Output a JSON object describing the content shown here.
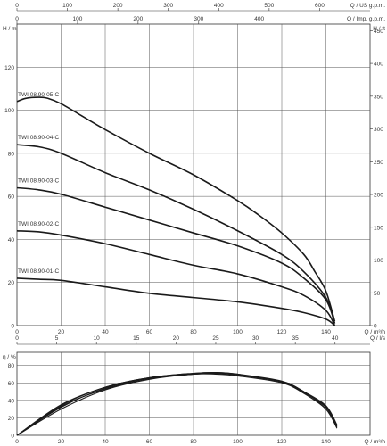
{
  "chart_data": [
    {
      "type": "line",
      "title": "",
      "axes": {
        "top_us": {
          "label": "Q / US g.p.m.",
          "ticks": [
            "0",
            "100",
            "200",
            "300",
            "400",
            "500",
            "600"
          ],
          "range": [
            0,
            700
          ]
        },
        "top_imp": {
          "label": "Q / Imp. g.p.m.",
          "ticks": [
            "0",
            "100",
            "200",
            "300",
            "400"
          ],
          "range": [
            0,
            583
          ]
        },
        "left": {
          "label": "H / m",
          "ticks": [
            "0",
            "20",
            "40",
            "60",
            "80",
            "100",
            "120"
          ],
          "range": [
            0,
            140
          ]
        },
        "right": {
          "label": "H / ft",
          "ticks": [
            "0",
            "50",
            "100",
            "150",
            "200",
            "250",
            "300",
            "350",
            "400",
            "450"
          ],
          "range": [
            0,
            460
          ]
        },
        "bottom_m3h": {
          "label": "Q / m³/h",
          "ticks": [
            "0",
            "20",
            "40",
            "60",
            "80",
            "100",
            "120",
            "140"
          ],
          "range": [
            0,
            160
          ]
        },
        "bottom_ls": {
          "label": "Q / l/s",
          "ticks": [
            "0",
            "5",
            "10",
            "15",
            "20",
            "25",
            "30",
            "35",
            "40"
          ],
          "range": [
            0,
            44.4
          ]
        }
      },
      "grid": true,
      "series": [
        {
          "name": "TWI 08.90-05-C",
          "x": [
            0,
            4,
            10,
            14,
            20,
            30,
            40,
            60,
            80,
            100,
            110,
            120,
            130,
            135,
            140,
            144
          ],
          "y": [
            104,
            105.5,
            106,
            105.5,
            103,
            97,
            91,
            80,
            70,
            58,
            51,
            43,
            33,
            25,
            16,
            2
          ]
        },
        {
          "name": "TWI 08.90-04-C",
          "x": [
            0,
            10,
            20,
            40,
            60,
            80,
            100,
            120,
            130,
            140,
            144
          ],
          "y": [
            84,
            83,
            80,
            71,
            63,
            54,
            44,
            33,
            25,
            13,
            1
          ]
        },
        {
          "name": "TWI 08.90-03-C",
          "x": [
            0,
            10,
            20,
            40,
            60,
            80,
            100,
            120,
            130,
            140,
            144
          ],
          "y": [
            64,
            63,
            61,
            55,
            49,
            43,
            37,
            29,
            22,
            12,
            1
          ]
        },
        {
          "name": "TWI 08.90-02-C",
          "x": [
            0,
            10,
            20,
            40,
            60,
            80,
            100,
            120,
            130,
            140,
            144
          ],
          "y": [
            44,
            43.5,
            42,
            38,
            33,
            28,
            24,
            18,
            14,
            7,
            0
          ]
        },
        {
          "name": "TWI 08.90-01-C",
          "x": [
            0,
            10,
            20,
            40,
            60,
            80,
            100,
            120,
            130,
            140,
            144
          ],
          "y": [
            22,
            21.5,
            21,
            18,
            15,
            13,
            11,
            8,
            6,
            3,
            0
          ]
        }
      ]
    },
    {
      "type": "line",
      "title": "",
      "axes": {
        "left": {
          "label": "η / %",
          "ticks": [
            "0",
            "20",
            "40",
            "60",
            "80"
          ],
          "range": [
            0,
            95
          ]
        },
        "bottom": {
          "label": "Q / m³/h",
          "ticks": [
            "0",
            "20",
            "40",
            "60",
            "80",
            "100",
            "120",
            "140"
          ],
          "range": [
            0,
            160
          ]
        }
      },
      "grid": true,
      "series": [
        {
          "x": [
            0,
            20,
            40,
            60,
            80,
            90,
            100,
            120,
            130,
            140,
            145
          ],
          "y": [
            0,
            35,
            55,
            66,
            71,
            72,
            70,
            62,
            50,
            34,
            12
          ]
        },
        {
          "x": [
            0,
            20,
            40,
            60,
            80,
            90,
            100,
            120,
            130,
            140,
            145
          ],
          "y": [
            0,
            33,
            53,
            65,
            70,
            71,
            69,
            61,
            50,
            30,
            8
          ]
        },
        {
          "x": [
            0,
            20,
            40,
            60,
            80,
            90,
            100,
            120,
            130,
            140,
            145
          ],
          "y": [
            0,
            30,
            52,
            64,
            70,
            70,
            68,
            60,
            48,
            30,
            10
          ]
        },
        {
          "x": [
            0,
            20,
            40,
            60,
            80,
            90,
            100,
            120,
            130,
            140,
            145
          ],
          "y": [
            0,
            32,
            54,
            65,
            70,
            71,
            69,
            61,
            49,
            32,
            9
          ]
        },
        {
          "x": [
            0,
            20,
            40,
            60,
            80,
            90,
            100,
            120,
            130,
            140,
            145
          ],
          "y": [
            0,
            34,
            55,
            66,
            71,
            72,
            70,
            61,
            49,
            33,
            11
          ]
        }
      ]
    }
  ]
}
